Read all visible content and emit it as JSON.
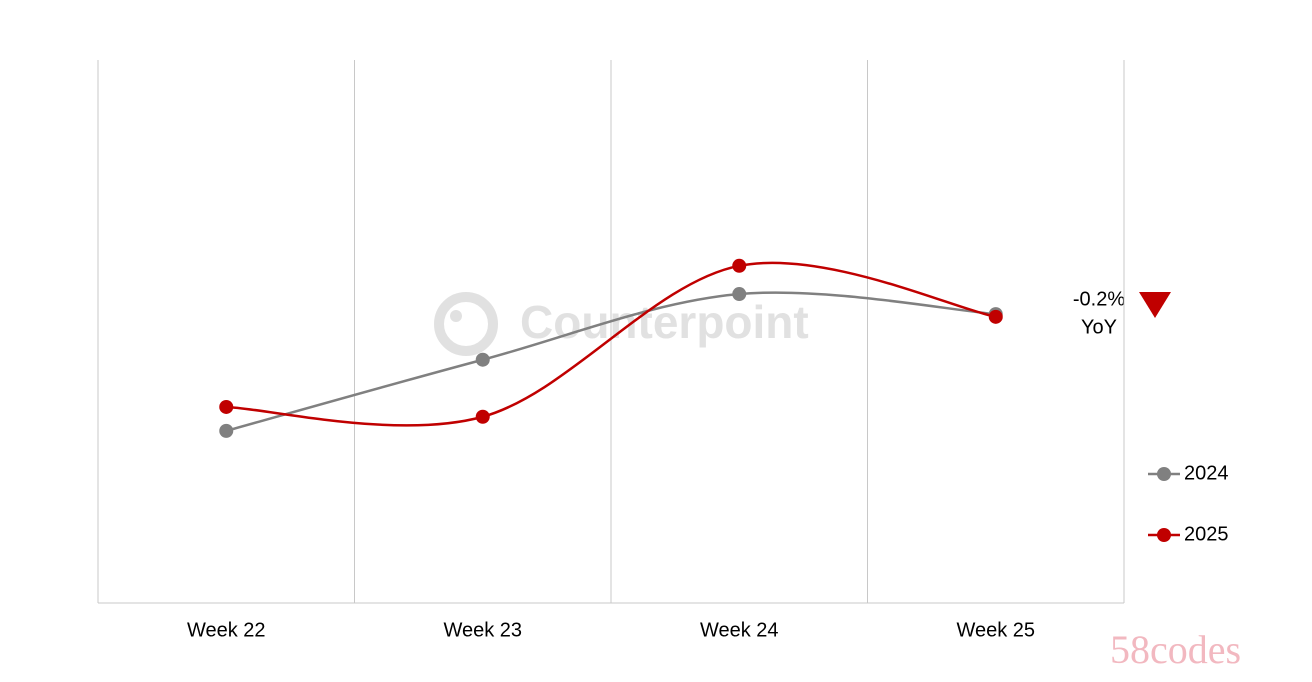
{
  "chart_data": {
    "type": "line",
    "categories": [
      "Week 22",
      "Week 23",
      "Week 24",
      "Week 25"
    ],
    "series": [
      {
        "name": "2024",
        "color": "#808080",
        "values": [
          31.7,
          44.8,
          56.9,
          53.2
        ]
      },
      {
        "name": "2025",
        "color": "#c00000",
        "values": [
          36.1,
          34.3,
          62.1,
          52.7
        ]
      }
    ],
    "ylim": [
      0,
      100
    ],
    "smooth": true,
    "grid": true,
    "legend": "right",
    "annotation": {
      "text": "-0.2%",
      "subtext": "YoY",
      "color": "#c00000"
    },
    "watermark": "Counterpoint",
    "source_watermark": "58codes"
  }
}
